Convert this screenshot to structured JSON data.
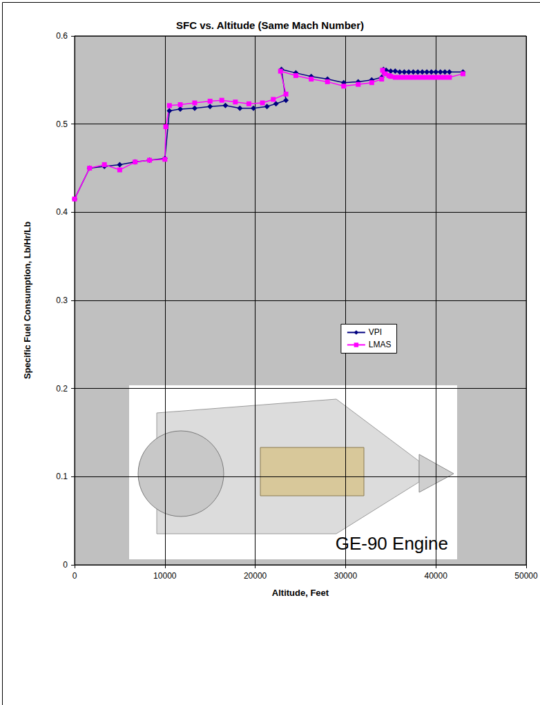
{
  "chart_data": {
    "type": "line",
    "title": "SFC vs. Altitude (Same Mach Number)",
    "x_label": "Altitude, Feet",
    "y_label": "Specific Fuel Consumption, Lb/Hr/Lb",
    "annotations": [
      "GE-90 Engine"
    ],
    "xlim": [
      0,
      50000
    ],
    "xticks": [
      0,
      10000,
      20000,
      30000,
      40000,
      50000
    ],
    "ylim": [
      0,
      0.6
    ],
    "yticks": [
      0,
      0.1,
      0.2,
      0.3,
      0.4,
      0.5,
      0.6
    ],
    "grid": true,
    "legend": "right",
    "series": [
      {
        "name": "VPI",
        "color": "#000080",
        "marker": "diamond",
        "line_style": "solid",
        "x": [
          0,
          1660,
          3300,
          5000,
          6700,
          8300,
          10000,
          10500,
          11700,
          13300,
          15000,
          16700,
          18300,
          19800,
          21300,
          22300,
          23400,
          22900,
          24500,
          26200,
          28000,
          29800,
          31400,
          32900,
          34000,
          34200,
          34500,
          35000,
          35500,
          36000,
          36500,
          37000,
          37500,
          38000,
          38500,
          39000,
          39500,
          40000,
          40500,
          41000,
          41500,
          43000
        ],
        "values": [
          0.415,
          0.45,
          0.452,
          0.454,
          0.457,
          0.459,
          0.461,
          0.515,
          0.517,
          0.518,
          0.52,
          0.521,
          0.518,
          0.518,
          0.52,
          0.523,
          0.527,
          0.562,
          0.558,
          0.554,
          0.551,
          0.547,
          0.548,
          0.55,
          0.553,
          0.562,
          0.561,
          0.56,
          0.56,
          0.559,
          0.559,
          0.559,
          0.559,
          0.559,
          0.559,
          0.559,
          0.559,
          0.559,
          0.559,
          0.559,
          0.559,
          0.559
        ]
      },
      {
        "name": "LMAS",
        "color": "#ff00ff",
        "marker": "square",
        "line_style": "solid",
        "x": [
          0,
          1660,
          3300,
          5000,
          6700,
          8300,
          10000,
          10100,
          10500,
          11700,
          13300,
          15000,
          16300,
          17800,
          19300,
          20800,
          22000,
          23400,
          22800,
          24500,
          26200,
          28000,
          29800,
          31400,
          32900,
          34000,
          34100,
          34400,
          34800,
          35000,
          35500,
          36000,
          36500,
          37000,
          37500,
          38000,
          38500,
          39000,
          39500,
          40000,
          40500,
          41000,
          41500,
          43000
        ],
        "values": [
          0.415,
          0.45,
          0.454,
          0.448,
          0.457,
          0.459,
          0.46,
          0.497,
          0.521,
          0.522,
          0.524,
          0.526,
          0.527,
          0.525,
          0.523,
          0.524,
          0.528,
          0.534,
          0.56,
          0.555,
          0.551,
          0.548,
          0.543,
          0.545,
          0.547,
          0.551,
          0.561,
          0.557,
          0.555,
          0.554,
          0.553,
          0.553,
          0.553,
          0.553,
          0.553,
          0.553,
          0.553,
          0.553,
          0.553,
          0.553,
          0.553,
          0.553,
          0.553,
          0.557
        ]
      }
    ]
  }
}
